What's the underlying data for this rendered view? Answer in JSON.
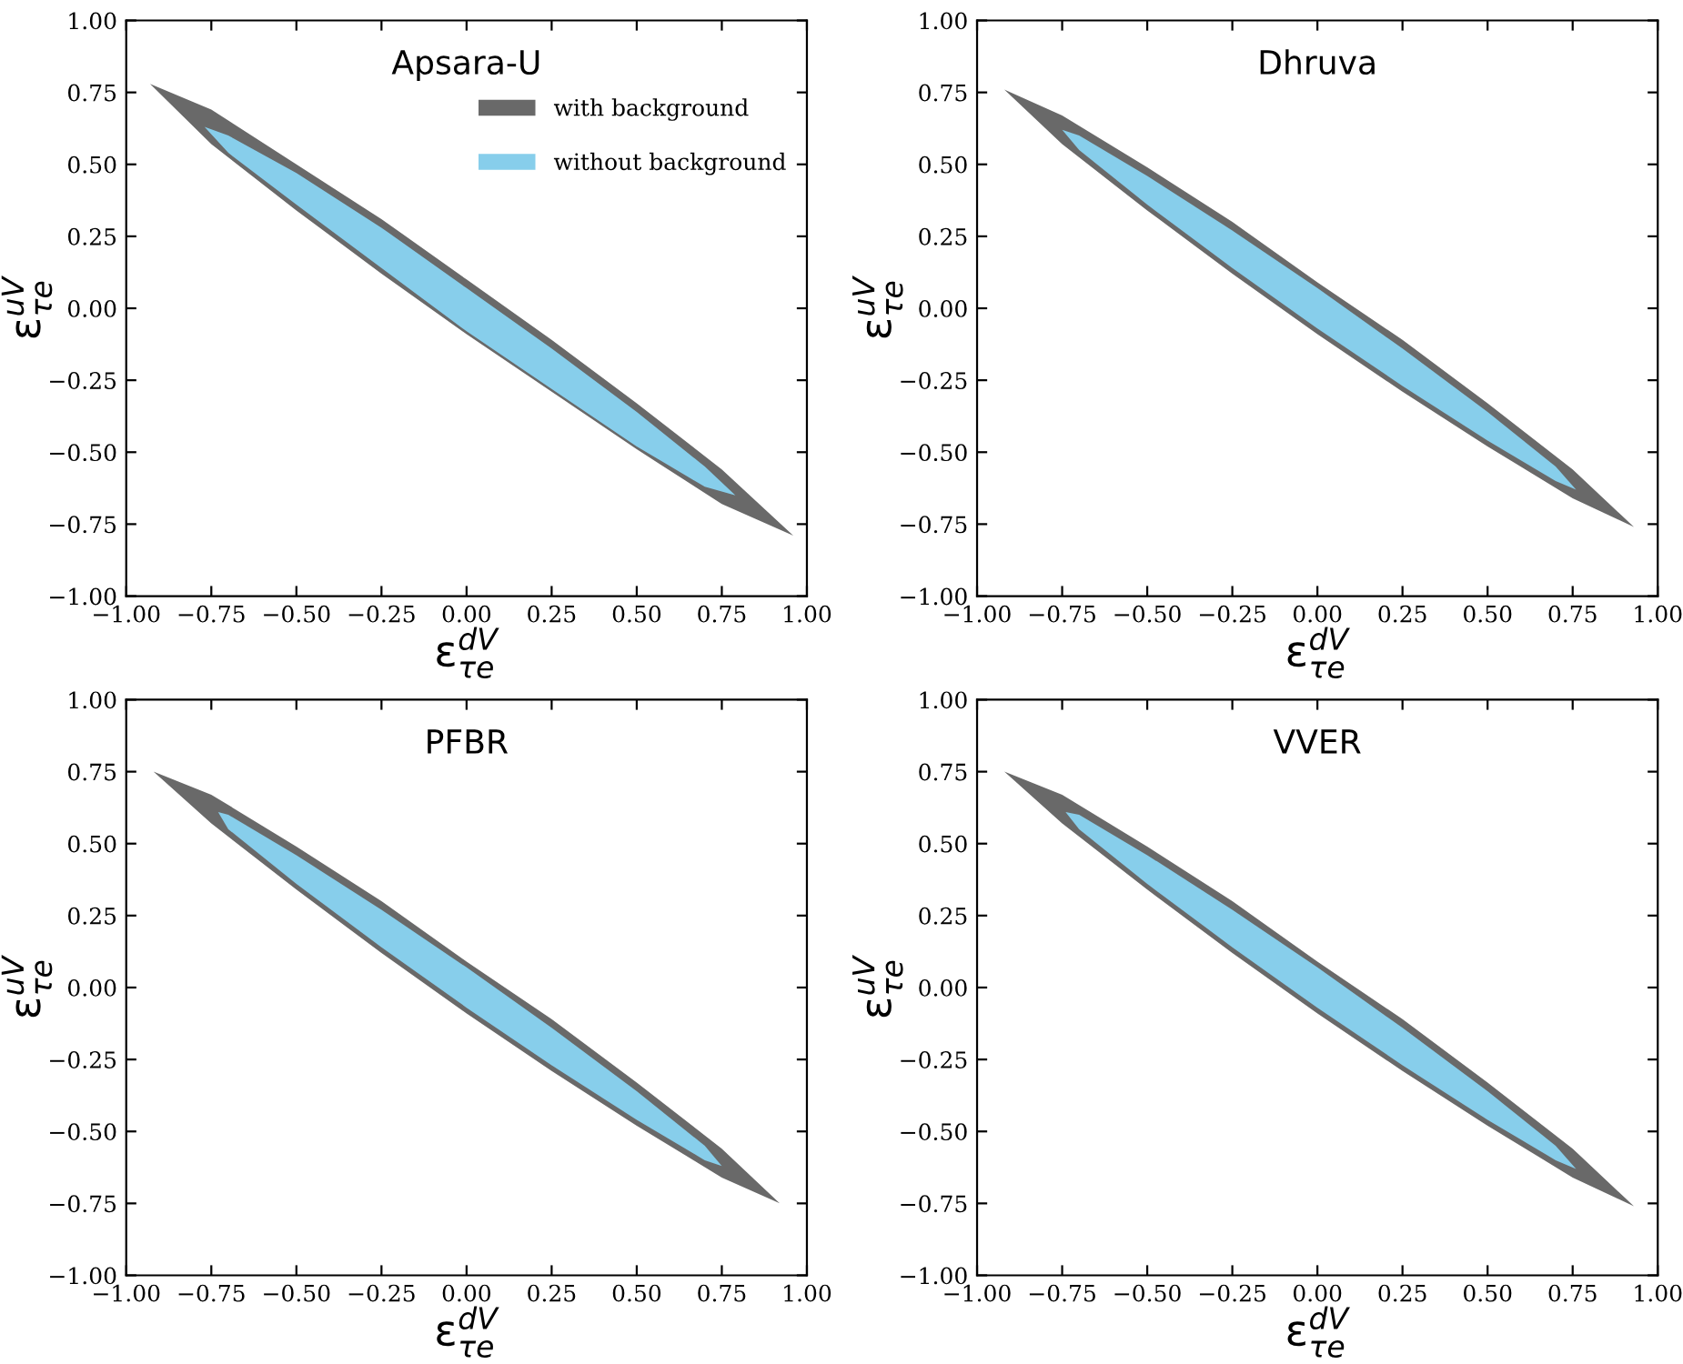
{
  "chart_data": [
    {
      "type": "area",
      "title": "Apsara-U",
      "xlabel": "ε$^{dV}$$_{τe}$",
      "ylabel": "ε$^{uV}$$_{τe}$",
      "xlim": [
        -1.0,
        1.0
      ],
      "ylim": [
        -1.0,
        1.0
      ],
      "xticks": [
        {
          "value": -1.0,
          "label": "−1.00"
        },
        {
          "value": -0.75,
          "label": "−0.75"
        },
        {
          "value": -0.5,
          "label": "−0.50"
        },
        {
          "value": -0.25,
          "label": "−0.25"
        },
        {
          "value": 0,
          "label": "0.00"
        },
        {
          "value": 0.25,
          "label": "0.25"
        },
        {
          "value": 0.5,
          "label": "0.50"
        },
        {
          "value": 0.75,
          "label": "0.75"
        },
        {
          "value": 1.0,
          "label": "1.00"
        }
      ],
      "yticks": [
        {
          "value": -1.0,
          "label": "−1.00"
        },
        {
          "value": -0.75,
          "label": "−0.75"
        },
        {
          "value": -0.5,
          "label": "−0.50"
        },
        {
          "value": -0.25,
          "label": "−0.25"
        },
        {
          "value": 0,
          "label": "0.00"
        },
        {
          "value": 0.25,
          "label": "0.25"
        },
        {
          "value": 0.5,
          "label": "0.50"
        },
        {
          "value": 0.75,
          "label": "0.75"
        },
        {
          "value": 1.0,
          "label": "1.00"
        }
      ],
      "legend": "top right",
      "series": [
        {
          "name": "with background",
          "color": "#696969",
          "x": [
            -0.93,
            -0.75,
            -0.5,
            -0.25,
            0,
            0.25,
            0.5,
            0.75,
            0.96,
            0.75,
            0.5,
            0.25,
            0,
            -0.25,
            -0.5,
            -0.75,
            -0.93
          ],
          "values": [
            0.78,
            0.69,
            0.5,
            0.31,
            0.1,
            -0.11,
            -0.33,
            -0.56,
            -0.79,
            -0.68,
            -0.49,
            -0.29,
            -0.09,
            0.12,
            0.34,
            0.57,
            0.78
          ]
        },
        {
          "name": "without background",
          "color": "#87ceeb",
          "x": [
            -0.77,
            -0.7,
            -0.5,
            -0.25,
            0,
            0.25,
            0.5,
            0.7,
            0.79,
            0.7,
            0.5,
            0.25,
            0,
            -0.25,
            -0.5,
            -0.7,
            -0.77
          ],
          "values": [
            0.63,
            0.6,
            0.47,
            0.28,
            0.07,
            -0.14,
            -0.36,
            -0.55,
            -0.65,
            -0.62,
            -0.48,
            -0.28,
            -0.08,
            0.14,
            0.36,
            0.54,
            0.63
          ]
        }
      ]
    },
    {
      "type": "area",
      "title": "Dhruva",
      "xlabel": "ε$^{dV}$$_{τe}$",
      "ylabel": "ε$^{uV}$$_{τe}$",
      "xlim": [
        -1.0,
        1.0
      ],
      "ylim": [
        -1.0,
        1.0
      ],
      "xticks": [
        {
          "value": -1.0,
          "label": "−1.00"
        },
        {
          "value": -0.75,
          "label": "−0.75"
        },
        {
          "value": -0.5,
          "label": "−0.50"
        },
        {
          "value": -0.25,
          "label": "−0.25"
        },
        {
          "value": 0,
          "label": "0.00"
        },
        {
          "value": 0.25,
          "label": "0.25"
        },
        {
          "value": 0.5,
          "label": "0.50"
        },
        {
          "value": 0.75,
          "label": "0.75"
        },
        {
          "value": 1.0,
          "label": "1.00"
        }
      ],
      "yticks": [
        {
          "value": -1.0,
          "label": "−1.00"
        },
        {
          "value": -0.75,
          "label": "−0.75"
        },
        {
          "value": -0.5,
          "label": "−0.50"
        },
        {
          "value": -0.25,
          "label": "−0.25"
        },
        {
          "value": 0,
          "label": "0.00"
        },
        {
          "value": 0.25,
          "label": "0.25"
        },
        {
          "value": 0.5,
          "label": "0.50"
        },
        {
          "value": 0.75,
          "label": "0.75"
        },
        {
          "value": 1.0,
          "label": "1.00"
        }
      ],
      "series": [
        {
          "color": "#696969",
          "x": [
            -0.92,
            -0.75,
            -0.5,
            -0.25,
            0,
            0.25,
            0.5,
            0.75,
            0.93,
            0.75,
            0.5,
            0.25,
            0,
            -0.25,
            -0.5,
            -0.75,
            -0.92
          ],
          "values": [
            0.76,
            0.67,
            0.49,
            0.3,
            0.09,
            -0.11,
            -0.33,
            -0.56,
            -0.76,
            -0.66,
            -0.48,
            -0.29,
            -0.09,
            0.12,
            0.34,
            0.57,
            0.76
          ]
        },
        {
          "color": "#87ceeb",
          "x": [
            -0.75,
            -0.7,
            -0.5,
            -0.25,
            0,
            0.25,
            0.5,
            0.7,
            0.76,
            0.7,
            0.5,
            0.25,
            0,
            -0.25,
            -0.5,
            -0.7,
            -0.75
          ],
          "values": [
            0.62,
            0.6,
            0.46,
            0.27,
            0.07,
            -0.14,
            -0.36,
            -0.55,
            -0.63,
            -0.6,
            -0.46,
            -0.27,
            -0.07,
            0.14,
            0.36,
            0.55,
            0.62
          ]
        }
      ]
    },
    {
      "type": "area",
      "title": "PFBR",
      "xlabel": "ε$^{dV}$$_{τe}$",
      "ylabel": "ε$^{uV}$$_{τe}$",
      "xlim": [
        -1.0,
        1.0
      ],
      "ylim": [
        -1.0,
        1.0
      ],
      "xticks": [
        {
          "value": -1.0,
          "label": "−1.00"
        },
        {
          "value": -0.75,
          "label": "−0.75"
        },
        {
          "value": -0.5,
          "label": "−0.50"
        },
        {
          "value": -0.25,
          "label": "−0.25"
        },
        {
          "value": 0,
          "label": "0.00"
        },
        {
          "value": 0.25,
          "label": "0.25"
        },
        {
          "value": 0.5,
          "label": "0.50"
        },
        {
          "value": 0.75,
          "label": "0.75"
        },
        {
          "value": 1.0,
          "label": "1.00"
        }
      ],
      "yticks": [
        {
          "value": -1.0,
          "label": "−1.00"
        },
        {
          "value": -0.75,
          "label": "−0.75"
        },
        {
          "value": -0.5,
          "label": "−0.50"
        },
        {
          "value": -0.25,
          "label": "−0.25"
        },
        {
          "value": 0,
          "label": "0.00"
        },
        {
          "value": 0.25,
          "label": "0.25"
        },
        {
          "value": 0.5,
          "label": "0.50"
        },
        {
          "value": 0.75,
          "label": "0.75"
        },
        {
          "value": 1.0,
          "label": "1.00"
        }
      ],
      "series": [
        {
          "color": "#696969",
          "x": [
            -0.92,
            -0.75,
            -0.5,
            -0.25,
            0,
            0.25,
            0.5,
            0.75,
            0.92,
            0.75,
            0.5,
            0.25,
            0,
            -0.25,
            -0.5,
            -0.75,
            -0.92
          ],
          "values": [
            0.75,
            0.67,
            0.49,
            0.3,
            0.09,
            -0.11,
            -0.33,
            -0.56,
            -0.75,
            -0.66,
            -0.48,
            -0.29,
            -0.09,
            0.12,
            0.34,
            0.57,
            0.75
          ]
        },
        {
          "color": "#87ceeb",
          "x": [
            -0.73,
            -0.7,
            -0.5,
            -0.25,
            0,
            0.25,
            0.5,
            0.7,
            0.75,
            0.7,
            0.5,
            0.25,
            0,
            -0.25,
            -0.5,
            -0.7,
            -0.73
          ],
          "values": [
            0.61,
            0.6,
            0.46,
            0.27,
            0.07,
            -0.14,
            -0.36,
            -0.55,
            -0.62,
            -0.6,
            -0.46,
            -0.27,
            -0.07,
            0.14,
            0.36,
            0.55,
            0.61
          ]
        }
      ]
    },
    {
      "type": "area",
      "title": "VVER",
      "xlabel": "ε$^{dV}$$_{τe}$",
      "ylabel": "ε$^{uV}$$_{τe}$",
      "xlim": [
        -1.0,
        1.0
      ],
      "ylim": [
        -1.0,
        1.0
      ],
      "xticks": [
        {
          "value": -1.0,
          "label": "−1.00"
        },
        {
          "value": -0.75,
          "label": "−0.75"
        },
        {
          "value": -0.5,
          "label": "−0.50"
        },
        {
          "value": -0.25,
          "label": "−0.25"
        },
        {
          "value": 0,
          "label": "0.00"
        },
        {
          "value": 0.25,
          "label": "0.25"
        },
        {
          "value": 0.5,
          "label": "0.50"
        },
        {
          "value": 0.75,
          "label": "0.75"
        },
        {
          "value": 1.0,
          "label": "1.00"
        }
      ],
      "yticks": [
        {
          "value": -1.0,
          "label": "−1.00"
        },
        {
          "value": -0.75,
          "label": "−0.75"
        },
        {
          "value": -0.5,
          "label": "−0.50"
        },
        {
          "value": -0.25,
          "label": "−0.25"
        },
        {
          "value": 0,
          "label": "0.00"
        },
        {
          "value": 0.25,
          "label": "0.25"
        },
        {
          "value": 0.5,
          "label": "0.50"
        },
        {
          "value": 0.75,
          "label": "0.75"
        },
        {
          "value": 1.0,
          "label": "1.00"
        }
      ],
      "series": [
        {
          "color": "#696969",
          "x": [
            -0.92,
            -0.75,
            -0.5,
            -0.25,
            0,
            0.25,
            0.5,
            0.75,
            0.93,
            0.75,
            0.5,
            0.25,
            0,
            -0.25,
            -0.5,
            -0.75,
            -0.92
          ],
          "values": [
            0.75,
            0.67,
            0.49,
            0.3,
            0.09,
            -0.11,
            -0.33,
            -0.56,
            -0.76,
            -0.66,
            -0.48,
            -0.29,
            -0.09,
            0.12,
            0.34,
            0.57,
            0.75
          ]
        },
        {
          "color": "#87ceeb",
          "x": [
            -0.74,
            -0.7,
            -0.5,
            -0.25,
            0,
            0.25,
            0.5,
            0.7,
            0.76,
            0.7,
            0.5,
            0.25,
            0,
            -0.25,
            -0.5,
            -0.7,
            -0.74
          ],
          "values": [
            0.61,
            0.6,
            0.46,
            0.27,
            0.07,
            -0.14,
            -0.36,
            -0.55,
            -0.63,
            -0.6,
            -0.46,
            -0.27,
            -0.07,
            0.14,
            0.36,
            0.55,
            0.61
          ]
        }
      ]
    }
  ]
}
